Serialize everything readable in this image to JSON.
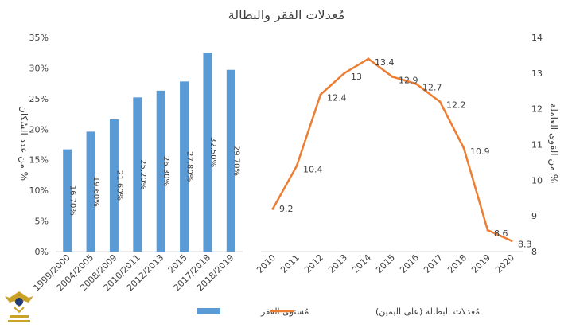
{
  "chart_data": {
    "title": "مُعدلات الفقر والبطالة",
    "left_chart": {
      "type": "bar",
      "ylabel": "% من عدد السُكان",
      "ylim": [
        0,
        35
      ],
      "yticks": [
        "0%",
        "5%",
        "10%",
        "15%",
        "20%",
        "25%",
        "30%",
        "35%"
      ],
      "categories": [
        "1999/2000",
        "2004/2005",
        "2008/2009",
        "2010/2011",
        "2012/2013",
        "2015",
        "2017/2018",
        "2018/2019"
      ],
      "values": [
        16.7,
        19.6,
        21.6,
        25.2,
        26.3,
        27.8,
        32.5,
        29.7
      ],
      "data_labels": [
        "16.70%",
        "19.60%",
        "21.60%",
        "25.20%",
        "26.30%",
        "27.80%",
        "32.50%",
        "29.70%"
      ],
      "series_name": "مُستوى الفقر",
      "color": "#5b9bd5"
    },
    "right_chart": {
      "type": "line",
      "ylabel": "% من القوى العاملة",
      "ylim": [
        8,
        14
      ],
      "yticks": [
        "8",
        "9",
        "10",
        "11",
        "12",
        "13",
        "14"
      ],
      "x": [
        "2010",
        "2011",
        "2012",
        "2013",
        "2014",
        "2015",
        "2016",
        "2017",
        "2018",
        "2019",
        "2020"
      ],
      "values": [
        9.2,
        10.4,
        12.4,
        13,
        13.4,
        12.9,
        12.7,
        12.2,
        10.9,
        8.6,
        8.3
      ],
      "data_labels": [
        "9.2",
        "10.4",
        "12.4",
        "13",
        "13.4",
        "12.9",
        "12.7",
        "12.2",
        "10.9",
        "8.6",
        "8.3"
      ],
      "series_name": "مُعدلات البطالة (على اليمين)",
      "color": "#ed7d31"
    },
    "grid": false,
    "legend_position": "bottom"
  }
}
